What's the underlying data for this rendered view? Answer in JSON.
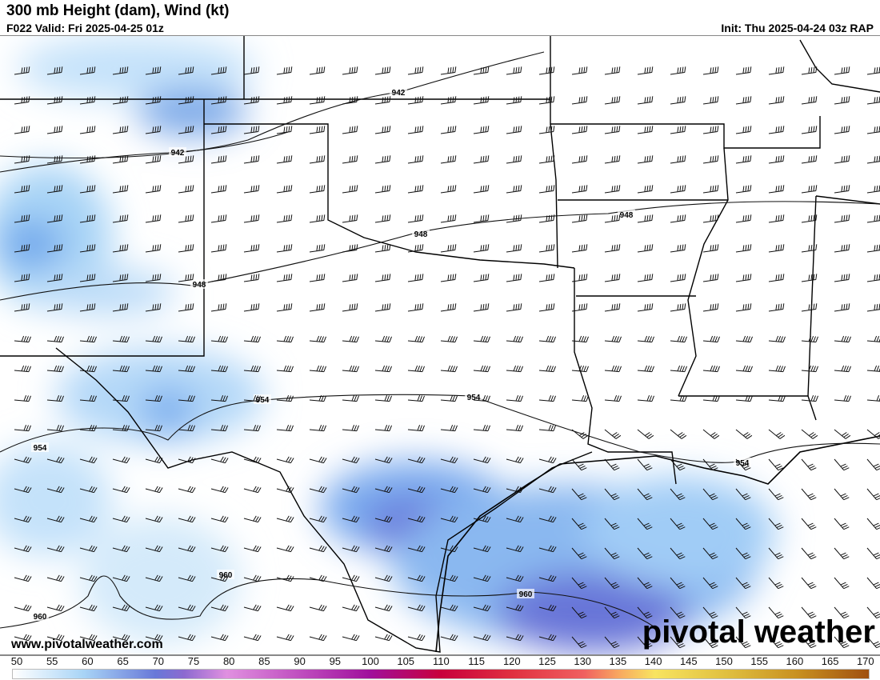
{
  "header": {
    "title": "300 mb Height (dam), Wind (kt)",
    "valid": "F022 Valid: Fri 2025-04-25 01z",
    "init": "Init: Thu 2025-04-24 03z RAP"
  },
  "footer": {
    "website": "www.pivotalweather.com",
    "logo": "pivotal weather"
  },
  "contours": [
    {
      "label": "942"
    },
    {
      "label": "942"
    },
    {
      "label": "948"
    },
    {
      "label": "948"
    },
    {
      "label": "948"
    },
    {
      "label": "954"
    },
    {
      "label": "954"
    },
    {
      "label": "954"
    },
    {
      "label": "954"
    },
    {
      "label": "960"
    },
    {
      "label": "960"
    },
    {
      "label": "960"
    }
  ],
  "colorbar": {
    "units": "kt",
    "ticks": [
      "50",
      "55",
      "60",
      "65",
      "70",
      "75",
      "80",
      "85",
      "90",
      "95",
      "100",
      "105",
      "110",
      "115",
      "120",
      "125",
      "130",
      "135",
      "140",
      "145",
      "150",
      "155",
      "160",
      "165",
      "170"
    ],
    "colors": [
      "#ffffff",
      "#a8d4f6",
      "#6878d8",
      "#e090e0",
      "#a0109c",
      "#c8003c",
      "#f06060",
      "#f8e460",
      "#c89020",
      "#a05010"
    ]
  }
}
